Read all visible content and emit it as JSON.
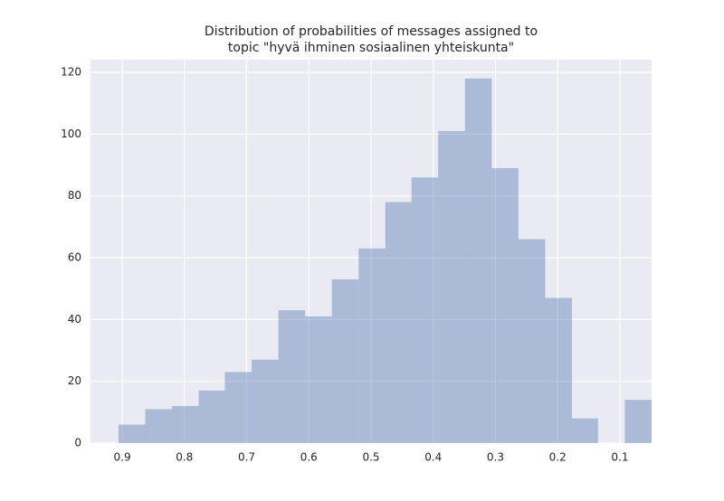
{
  "chart_data": {
    "type": "histogram",
    "title": [
      "Distribution of probabilities of messages assigned to",
      "topic \"hyvä ihminen sosiaalinen yhteiskunta\""
    ],
    "bins": [
      0.049,
      0.092,
      0.135,
      0.177,
      0.22,
      0.263,
      0.306,
      0.349,
      0.392,
      0.435,
      0.477,
      0.52,
      0.563,
      0.606,
      0.649,
      0.692,
      0.735,
      0.777,
      0.82,
      0.863,
      0.906
    ],
    "values": [
      14,
      0,
      8,
      47,
      66,
      89,
      118,
      101,
      86,
      78,
      63,
      53,
      41,
      43,
      27,
      23,
      17,
      12,
      11,
      6
    ],
    "color": "#4c72b0",
    "alpha": 0.4,
    "xlim": [
      0.951,
      0.049
    ],
    "xticks": [
      0.9,
      0.8,
      0.7,
      0.6,
      0.5,
      0.4,
      0.3,
      0.2,
      0.1
    ],
    "ylim": [
      0,
      124.1
    ],
    "yticks": [
      0,
      20,
      40,
      60,
      80,
      100,
      120
    ],
    "grid": true
  }
}
